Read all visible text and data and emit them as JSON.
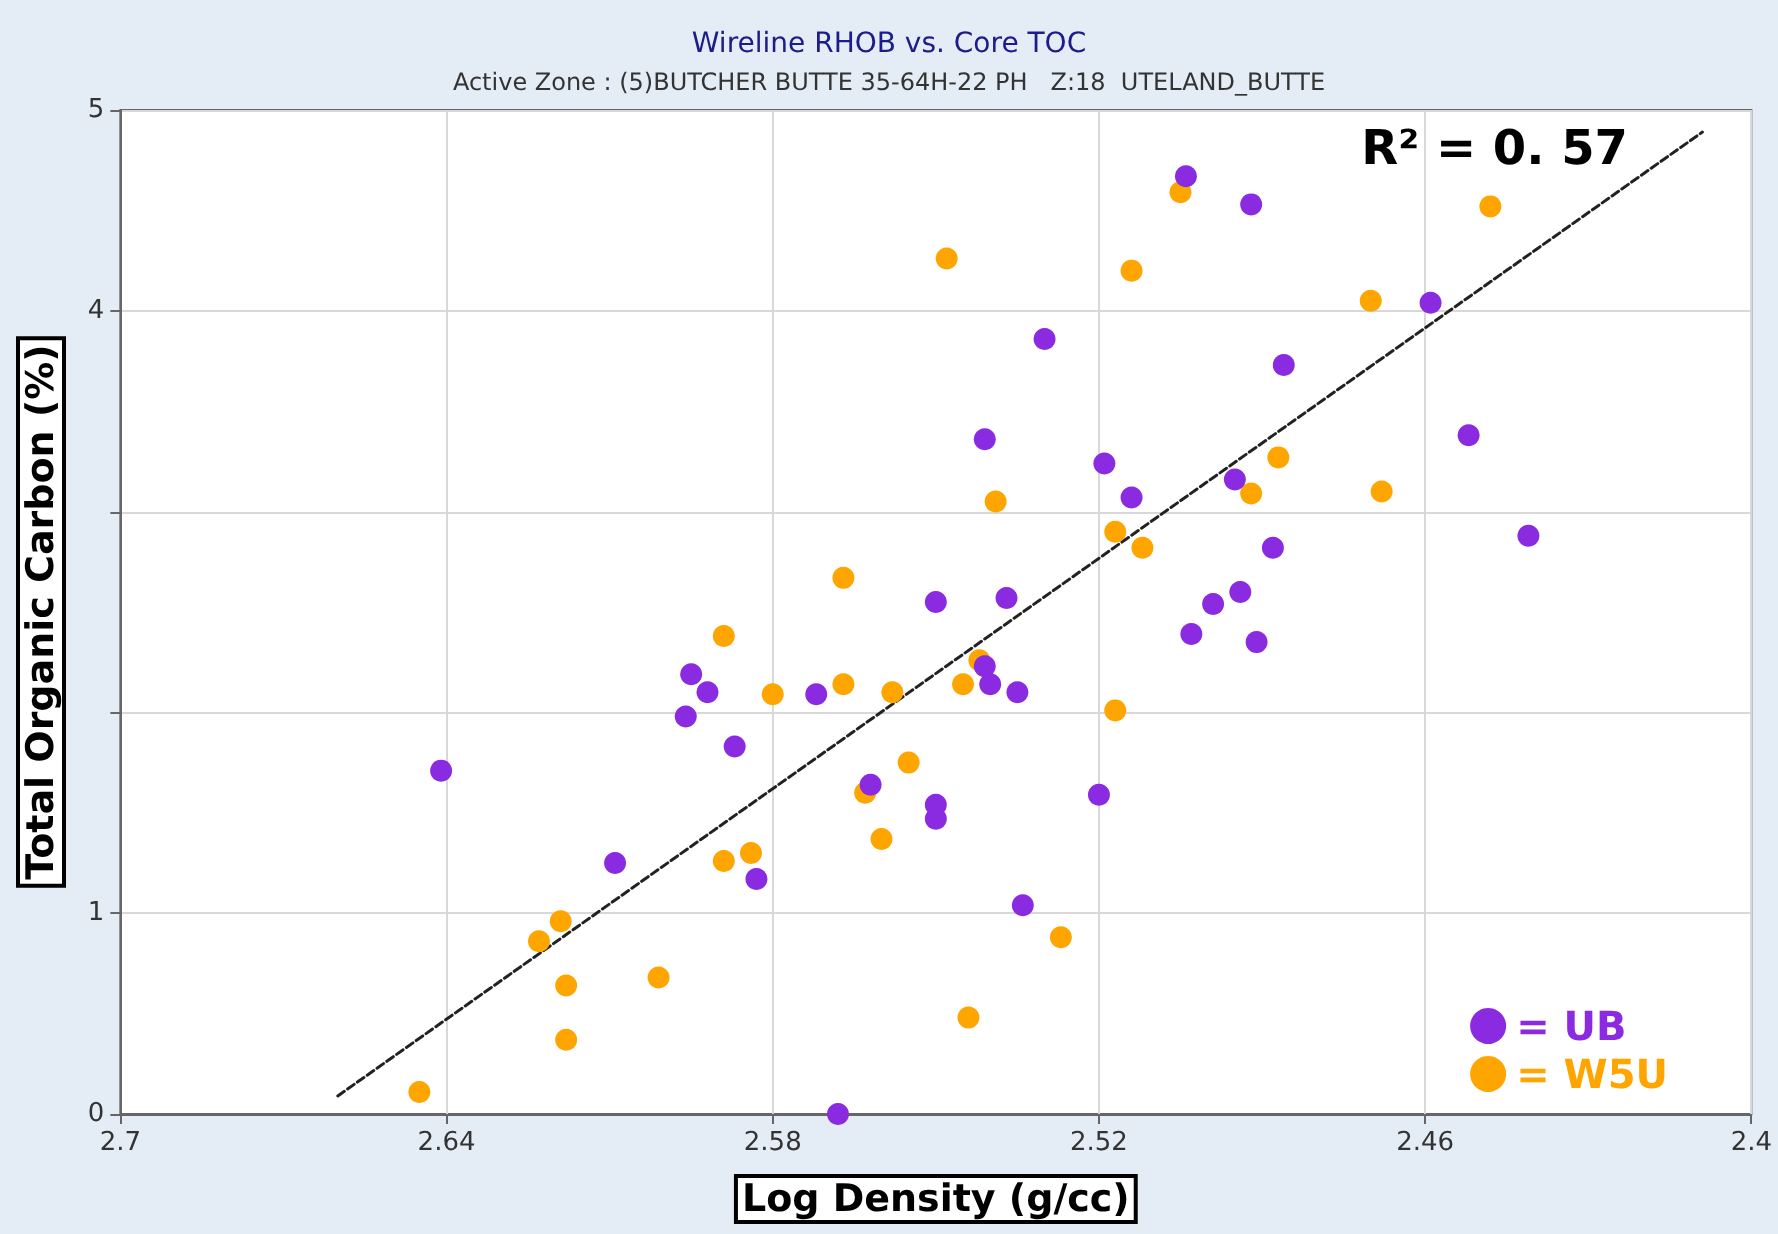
{
  "chart_data": {
    "type": "scatter",
    "title": "Wireline RHOB vs. Core TOC",
    "subtitle": "Active Zone : (5)BUTCHER BUTTE 35-64H-22 PH   Z:18  UTELAND_BUTTE",
    "xlabel": "Log Density (g/cc)",
    "ylabel": "Total Organic Carbon (%)",
    "xlim": [
      2.7,
      2.4
    ],
    "xticks": [
      2.7,
      2.64,
      2.58,
      2.52,
      2.46,
      2.4
    ],
    "ylim": [
      0,
      5
    ],
    "yticks": [
      0,
      1,
      {
        "value": 2,
        "label": null
      },
      {
        "value": 3,
        "label": null
      },
      4,
      5
    ],
    "grid": true,
    "legend": "bottom right",
    "marker": "circle",
    "annotations": [
      "R² = 0. 57"
    ],
    "series": [
      {
        "name": "= UB",
        "color": "#8a2be2",
        "x": [
          2.641,
          2.609,
          2.596,
          2.595,
          2.592,
          2.587,
          2.583,
          2.572,
          2.562,
          2.568,
          2.55,
          2.55,
          2.55,
          2.537,
          2.499,
          2.494,
          2.503,
          2.491,
          2.541,
          2.54,
          2.535,
          2.52,
          2.534,
          2.488,
          2.441,
          2.495,
          2.514,
          2.519,
          2.452,
          2.541,
          2.486,
          2.459,
          2.53,
          2.504,
          2.492
        ],
        "values": [
          1.71,
          1.25,
          1.98,
          2.19,
          2.1,
          1.83,
          1.17,
          2.09,
          1.64,
          0,
          1.54,
          1.47,
          2.55,
          2.57,
          2.54,
          2.6,
          2.39,
          2.35,
          2.23,
          2.14,
          2.1,
          1.59,
          1.04,
          2.82,
          2.88,
          3.16,
          3.07,
          3.24,
          3.38,
          3.36,
          3.73,
          4.04,
          3.86,
          4.67,
          4.53
        ]
      },
      {
        "name": "= W5U",
        "color": "#ffa500",
        "x": [
          2.645,
          2.618,
          2.618,
          2.601,
          2.623,
          2.619,
          2.589,
          2.584,
          2.56,
          2.563,
          2.555,
          2.58,
          2.567,
          2.558,
          2.589,
          2.567,
          2.545,
          2.542,
          2.517,
          2.544,
          2.527,
          2.517,
          2.512,
          2.539,
          2.492,
          2.468,
          2.487,
          2.47,
          2.448,
          2.514,
          2.548,
          2.505
        ],
        "values": [
          0.11,
          0.37,
          0.64,
          0.68,
          0.86,
          0.96,
          1.26,
          1.3,
          1.37,
          1.6,
          1.75,
          2.09,
          2.14,
          2.1,
          2.38,
          2.67,
          2.14,
          2.26,
          2.01,
          0.48,
          0.88,
          2.9,
          2.82,
          3.05,
          3.09,
          3.1,
          3.27,
          4.05,
          4.52,
          4.2,
          4.26,
          4.59
        ]
      },
      {
        "type": "line",
        "color": "#222222",
        "line_style": "dashed",
        "marker": "none",
        "x": [
          2.66,
          2.409
        ],
        "values": [
          0.09,
          4.89
        ]
      }
    ]
  }
}
